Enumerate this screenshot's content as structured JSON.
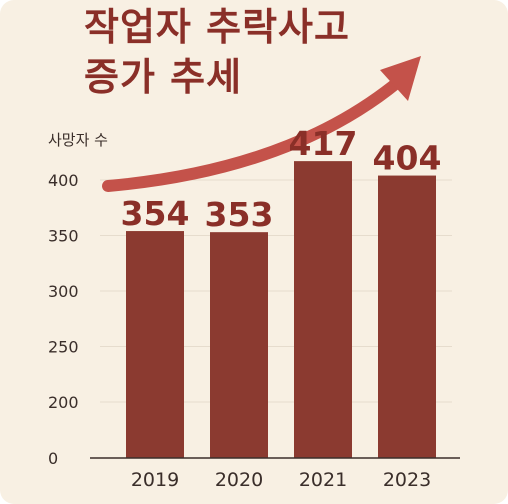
{
  "chart_data": {
    "type": "bar",
    "title_lines": [
      "작업자 추락사고",
      "증가 추세"
    ],
    "ylabel": "사망자 수",
    "categories": [
      "2019",
      "2020",
      "2021",
      "2023"
    ],
    "values": [
      354,
      353,
      417,
      404
    ],
    "data_labels": [
      "354",
      "353",
      "417",
      "404"
    ],
    "yticks": [
      0,
      200,
      250,
      300,
      350,
      400
    ],
    "ytick_labels": [
      "0",
      "200",
      "250",
      "300",
      "350",
      "400"
    ],
    "grid": true,
    "legend": "none",
    "trend_arrow": "up"
  },
  "colors": {
    "bar": "#8b3a30",
    "title": "#8a2f28",
    "arrow": "#c4524a",
    "background": "#f8f0e3"
  }
}
